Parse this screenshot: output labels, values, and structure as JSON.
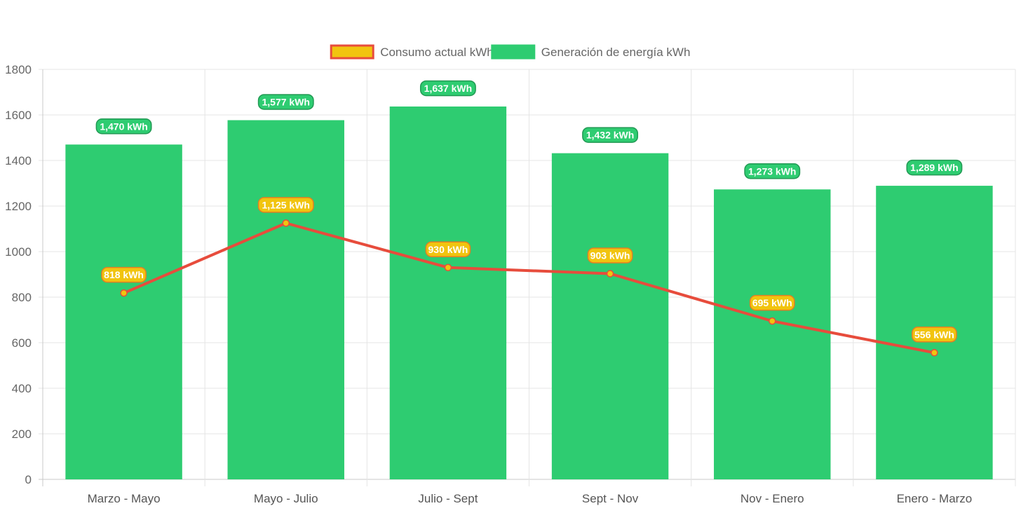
{
  "chart_data": {
    "type": "bar",
    "categories": [
      "Marzo - Mayo",
      "Mayo - Julio",
      "Julio - Sept",
      "Sept - Nov",
      "Nov - Enero",
      "Enero - Marzo"
    ],
    "series": [
      {
        "name": "Generación de energía kWh",
        "type": "bar",
        "values": [
          1470,
          1577,
          1637,
          1432,
          1273,
          1289
        ],
        "labels": [
          "1,470 kWh",
          "1,577 kWh",
          "1,637 kWh",
          "1,432 kWh",
          "1,273 kWh",
          "1,289 kWh"
        ],
        "color": "#2ecc71"
      },
      {
        "name": "Consumo actual kWh",
        "type": "line",
        "values": [
          818,
          1125,
          930,
          903,
          695,
          556
        ],
        "labels": [
          "818 kWh",
          "1,125 kWh",
          "930 kWh",
          "903 kWh",
          "695 kWh",
          "556 kWh"
        ],
        "color": "#e74c3c",
        "point_color": "#f1c40f"
      }
    ],
    "ylim": [
      0,
      1800
    ],
    "yticks": [
      0,
      200,
      400,
      600,
      800,
      1000,
      1200,
      1400,
      1600,
      1800
    ],
    "grid": true,
    "legend_position": "top-center",
    "legend": [
      {
        "label": "Consumo actual kWh",
        "fill": "#f1c40f",
        "stroke": "#e74c3c"
      },
      {
        "label": "Generación de energía kWh",
        "fill": "#2ecc71",
        "stroke": "#2ecc71"
      }
    ]
  }
}
